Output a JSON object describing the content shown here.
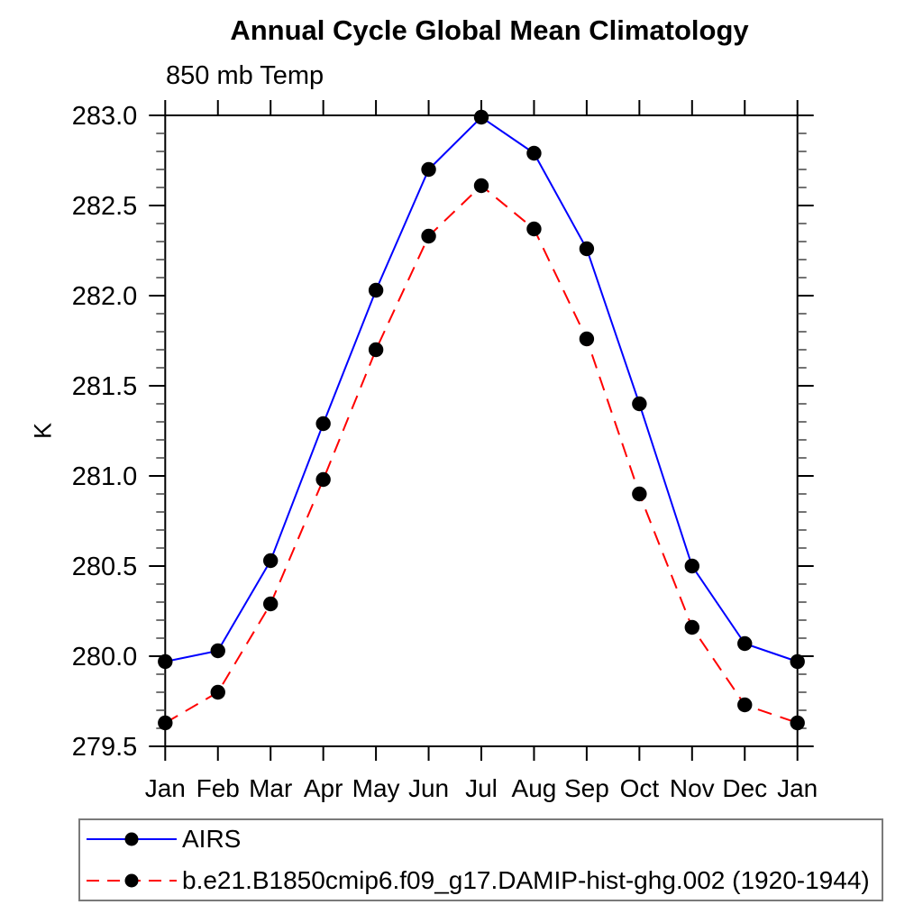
{
  "page": {
    "background_color": "#ffffff",
    "text_color": "#000000"
  },
  "chart_data": {
    "type": "line",
    "title": "Annual Cycle Global Mean Climatology",
    "subtitle": "850 mb Temp",
    "xlabel": "",
    "ylabel": "K",
    "categories": [
      "Jan",
      "Feb",
      "Mar",
      "Apr",
      "May",
      "Jun",
      "Jul",
      "Aug",
      "Sep",
      "Oct",
      "Nov",
      "Dec",
      "Jan"
    ],
    "ylim": [
      279.5,
      283.0
    ],
    "ytick_major_interval": 0.5,
    "ytick_minor_interval": 0.1,
    "ytick_labels": [
      "279.5",
      "280.0",
      "280.5",
      "281.0",
      "281.5",
      "282.0",
      "282.5",
      "283.0"
    ],
    "grid": false,
    "legend_position": "bottom-left-boxed",
    "series": [
      {
        "name": "AIRS",
        "color": "#0000ff",
        "line_style": "solid",
        "marker": "filled-circle",
        "marker_color": "#000000",
        "values": [
          279.97,
          280.03,
          280.53,
          281.29,
          282.03,
          282.7,
          282.99,
          282.79,
          282.26,
          281.4,
          280.5,
          280.07,
          279.97
        ]
      },
      {
        "name": "b.e21.B1850cmip6.f09_g17.DAMIP-hist-ghg.002 (1920-1944)",
        "color": "#ff0000",
        "line_style": "dashed",
        "marker": "filled-circle",
        "marker_color": "#000000",
        "values": [
          279.63,
          279.8,
          280.29,
          280.98,
          281.7,
          282.33,
          282.61,
          282.37,
          281.76,
          280.9,
          280.16,
          279.73,
          279.63
        ]
      }
    ]
  }
}
